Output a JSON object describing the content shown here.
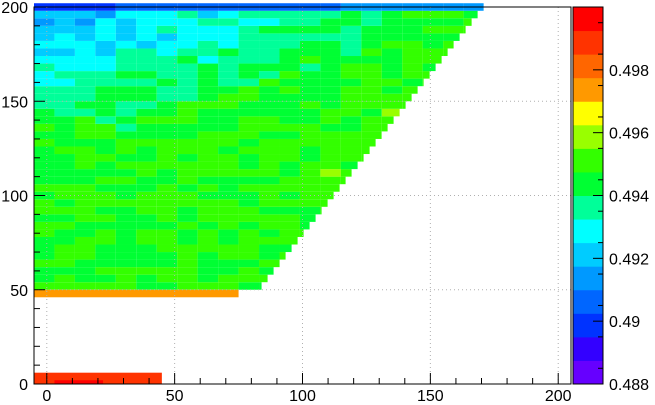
{
  "chart_data": {
    "type": "heatmap",
    "title": "",
    "xlabel": "",
    "ylabel": "",
    "xlim": [
      -5,
      205
    ],
    "ylim": [
      0,
      200
    ],
    "x_ticks": [
      0,
      50,
      100,
      150,
      200
    ],
    "y_ticks": [
      0,
      50,
      100,
      150,
      200
    ],
    "grid": true,
    "colorbar": {
      "range": [
        0.488,
        0.5
      ],
      "ticks": [
        0.488,
        0.49,
        0.492,
        0.494,
        0.496,
        0.498
      ],
      "tick_labels": [
        "0.488",
        "0.49",
        "0.492",
        "0.494",
        "0.496",
        "0.498"
      ]
    },
    "cell_width_x": 8,
    "cell_height_y": 4,
    "region_description_points": {
      "upper_triangle": {
        "x_start": -5,
        "y_bottom": 50,
        "y_top": 200,
        "x_right_at_y50": 84,
        "x_right_at_y200": 172
      },
      "yellow_band": {
        "x": [
          -5,
          75
        ],
        "y": [
          46,
          50
        ],
        "value": 0.4975
      },
      "bottom_band": {
        "x": [
          -5,
          45
        ],
        "y": [
          0,
          6
        ],
        "value": 0.4985
      },
      "bottom_red_patch": {
        "x": [
          3,
          22
        ],
        "y": [
          0,
          2
        ],
        "value": 0.4998
      }
    },
    "value_profile": {
      "upper_left_value": 0.4915,
      "center_value": 0.4945,
      "lower_edge_value": 0.4948
    }
  }
}
